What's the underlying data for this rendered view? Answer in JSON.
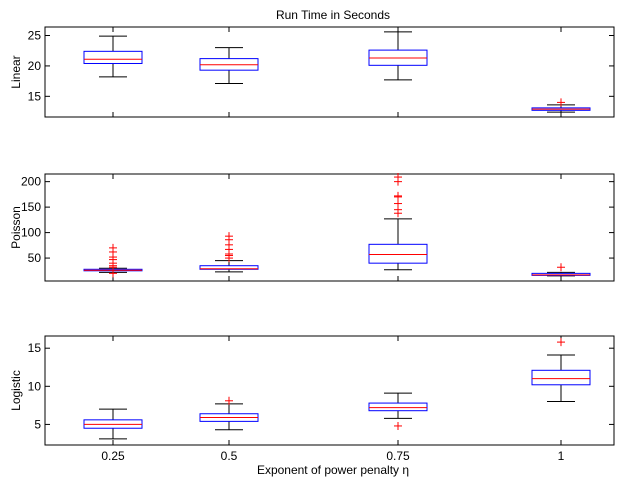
{
  "chart_data": {
    "type": "box",
    "title": "Run Time in Seconds",
    "xlabel": "Exponent of power penalty η",
    "categories": [
      "0.25",
      "0.5",
      "0.75",
      "1"
    ],
    "box_color": "#0000ff",
    "median_color": "#ff0000",
    "whisker_color": "#000000",
    "outlier_color": "#ff0000",
    "panels": [
      {
        "ylabel": "Linear",
        "ylim": [
          11.6,
          26.4
        ],
        "yticks": [
          15,
          20,
          25
        ],
        "ytick_labels": [
          "15",
          "20",
          "25"
        ],
        "boxes": [
          {
            "whislo": 18.2,
            "q1": 20.4,
            "med": 21.1,
            "q3": 22.4,
            "whishi": 24.9,
            "fliers": []
          },
          {
            "whislo": 17.1,
            "q1": 19.3,
            "med": 20.2,
            "q3": 21.2,
            "whishi": 23.0,
            "fliers": []
          },
          {
            "whislo": 17.7,
            "q1": 20.1,
            "med": 21.3,
            "q3": 22.6,
            "whishi": 25.6,
            "fliers": []
          },
          {
            "whislo": 12.4,
            "q1": 12.7,
            "med": 12.9,
            "q3": 13.1,
            "whishi": 13.6,
            "fliers": [
              14.0
            ]
          }
        ]
      },
      {
        "ylabel": "Poisson",
        "ylim": [
          5,
          215
        ],
        "yticks": [
          50,
          100,
          150,
          200
        ],
        "ytick_labels": [
          "50",
          "100",
          "150",
          "200"
        ],
        "boxes": [
          {
            "whislo": 22,
            "q1": 25,
            "med": 26,
            "q3": 28,
            "whishi": 30,
            "fliers": [
              20,
              32,
              35,
              40,
              47,
              52,
              62,
              70
            ]
          },
          {
            "whislo": 23,
            "q1": 28,
            "med": 29,
            "q3": 35,
            "whishi": 45,
            "fliers": [
              50,
              55,
              58,
              67,
              76,
              86,
              93
            ]
          },
          {
            "whislo": 27,
            "q1": 40,
            "med": 57,
            "q3": 77,
            "whishi": 127,
            "fliers": [
              138,
              145,
              157,
              170,
              172,
              200,
              209
            ]
          },
          {
            "whislo": 15,
            "q1": 16,
            "med": 17,
            "q3": 20,
            "whishi": 22,
            "fliers": [
              32
            ]
          }
        ]
      },
      {
        "ylabel": "Logistic",
        "ylim": [
          2.3,
          16.6
        ],
        "yticks": [
          5,
          10,
          15
        ],
        "ytick_labels": [
          "5",
          "10",
          "15"
        ],
        "boxes": [
          {
            "whislo": 3.1,
            "q1": 4.5,
            "med": 5.0,
            "q3": 5.6,
            "whishi": 7.0,
            "fliers": []
          },
          {
            "whislo": 4.3,
            "q1": 5.4,
            "med": 5.9,
            "q3": 6.4,
            "whishi": 7.7,
            "fliers": [
              8.1
            ]
          },
          {
            "whislo": 5.8,
            "q1": 6.8,
            "med": 7.2,
            "q3": 7.8,
            "whishi": 9.1,
            "fliers": [
              4.8
            ]
          },
          {
            "whislo": 8.0,
            "q1": 10.2,
            "med": 11.0,
            "q3": 12.1,
            "whishi": 14.1,
            "fliers": [
              15.8
            ]
          }
        ]
      }
    ]
  }
}
